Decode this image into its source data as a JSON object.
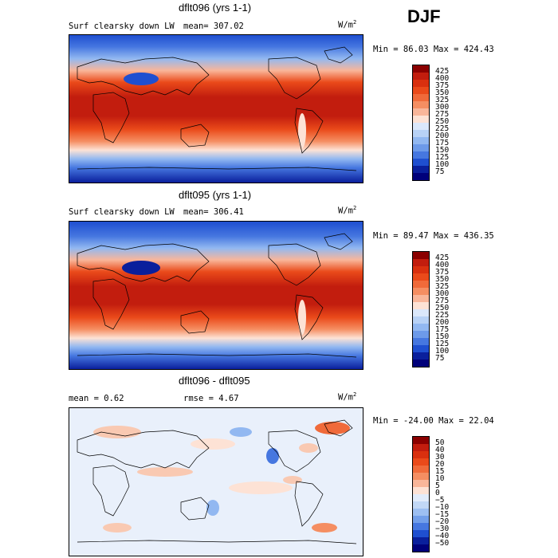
{
  "season": "DJF",
  "panels": [
    {
      "title": "dflt096 (yrs 1-1)",
      "left_label": "Surf clearsky down LW",
      "mean_label": "mean= 307.02",
      "units_base": "W/m",
      "units_exp": "2",
      "minmax_label": "Min =  86.03 Max = 424.43"
    },
    {
      "title": "dflt095 (yrs 1-1)",
      "left_label": "Surf clearsky down LW",
      "mean_label": "mean= 306.41",
      "units_base": "W/m",
      "units_exp": "2",
      "minmax_label": "Min =  89.47 Max = 436.35"
    },
    {
      "title": "dflt096 - dflt095",
      "left_label": "mean =    0.62",
      "mean_label": "rmse =    4.67",
      "units_base": "W/m",
      "units_exp": "2",
      "minmax_label": "Min = -24.00 Max =  22.04"
    }
  ],
  "chart_data": [
    {
      "type": "heatmap",
      "title": "dflt096 (yrs 1-1)",
      "variable": "Surf clearsky down LW",
      "units": "W/m2",
      "mean": 307.02,
      "min": 86.03,
      "max": 424.43,
      "colorbar_levels": [
        "425",
        "400",
        "375",
        "350",
        "325",
        "300",
        "275",
        "250",
        "225",
        "200",
        "175",
        "150",
        "125",
        "100",
        "75"
      ],
      "colorbar_colors": [
        "#8b0000",
        "#c21d0e",
        "#d9300f",
        "#ea4a1a",
        "#f06a3a",
        "#f58e62",
        "#f9b69a",
        "#fde2d5",
        "#dbe8fb",
        "#b8d2f6",
        "#92b8f1",
        "#6d9ae9",
        "#4677e0",
        "#1f4fd0",
        "#0a1f9c",
        "#00007a"
      ]
    },
    {
      "type": "heatmap",
      "title": "dflt095 (yrs 1-1)",
      "variable": "Surf clearsky down LW",
      "units": "W/m2",
      "mean": 306.41,
      "min": 89.47,
      "max": 436.35,
      "colorbar_levels": [
        "425",
        "400",
        "375",
        "350",
        "325",
        "300",
        "275",
        "250",
        "225",
        "200",
        "175",
        "150",
        "125",
        "100",
        "75"
      ],
      "colorbar_colors": [
        "#8b0000",
        "#c21d0e",
        "#d9300f",
        "#ea4a1a",
        "#f06a3a",
        "#f58e62",
        "#f9b69a",
        "#fde2d5",
        "#dbe8fb",
        "#b8d2f6",
        "#92b8f1",
        "#6d9ae9",
        "#4677e0",
        "#1f4fd0",
        "#0a1f9c",
        "#00007a"
      ]
    },
    {
      "type": "heatmap",
      "title": "dflt096 - dflt095",
      "units": "W/m2",
      "mean": 0.62,
      "rmse": 4.67,
      "min": -24.0,
      "max": 22.04,
      "colorbar_levels": [
        "50",
        "40",
        "30",
        "20",
        "15",
        "10",
        "5",
        "0",
        "−5",
        "−10",
        "−15",
        "−20",
        "−30",
        "−40",
        "−50"
      ],
      "colorbar_colors": [
        "#8b0000",
        "#c21d0e",
        "#d9300f",
        "#ea4a1a",
        "#f06a3a",
        "#f58e62",
        "#f9b69a",
        "#fde2d5",
        "#e2ecfb",
        "#c2d8f6",
        "#9dbff2",
        "#739fea",
        "#4677e0",
        "#1f4fd0",
        "#0a1f9c",
        "#00007a"
      ]
    }
  ]
}
